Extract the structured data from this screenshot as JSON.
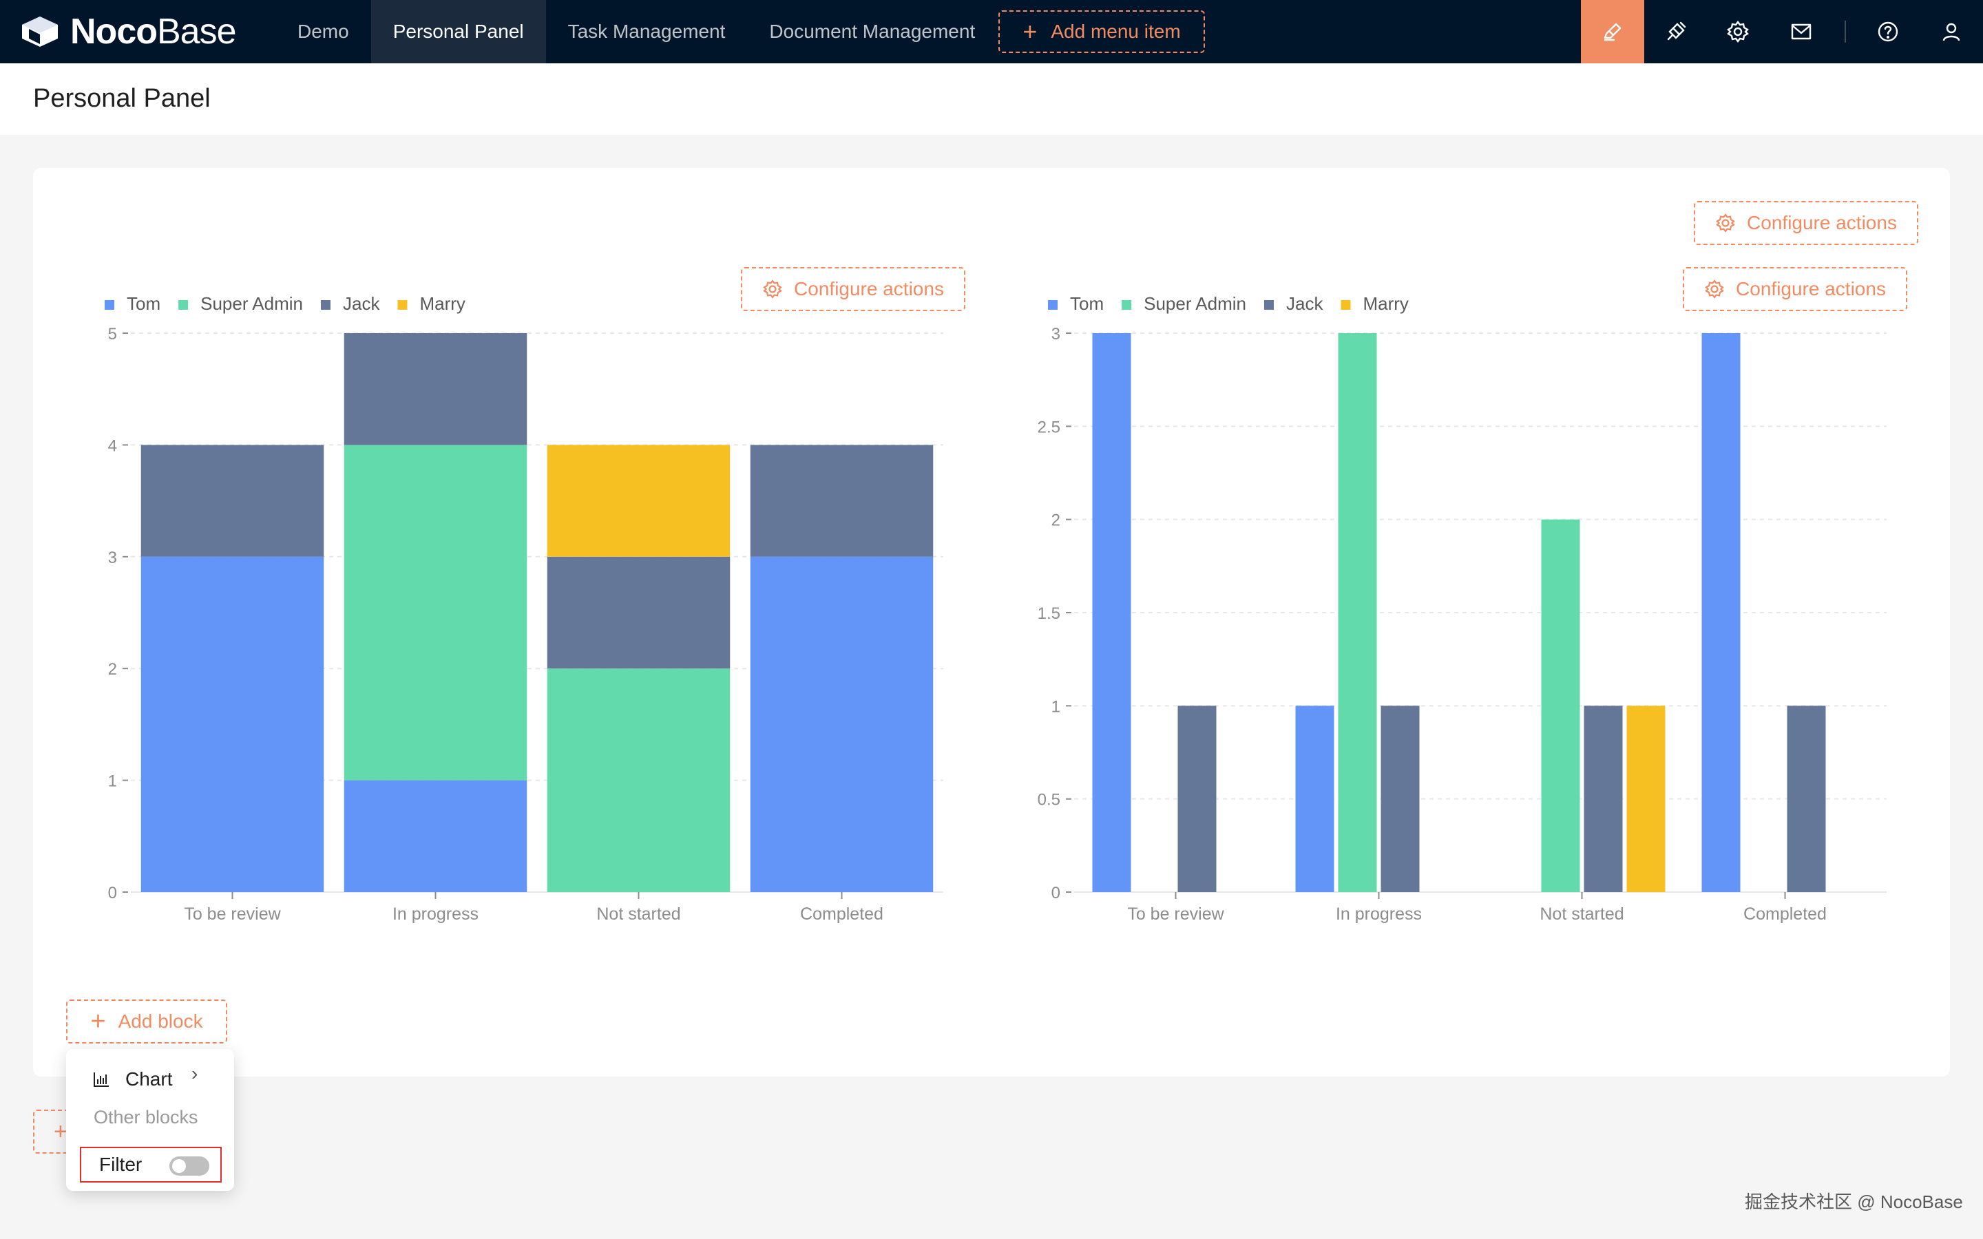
{
  "topbar": {
    "logo_bold": "Noco",
    "logo_light": "Base",
    "nav": [
      {
        "label": "Demo"
      },
      {
        "label": "Personal Panel"
      },
      {
        "label": "Task Management"
      },
      {
        "label": "Document Management"
      }
    ],
    "active_nav": "Personal Panel",
    "add_menu_label": "Add menu item",
    "tools": [
      "ui-editor-icon",
      "plugin-icon",
      "settings-icon",
      "mail-icon",
      "help-icon",
      "user-icon"
    ]
  },
  "page": {
    "title": "Personal Panel"
  },
  "actions": {
    "configure_label": "Configure actions",
    "add_block_label": "Add block"
  },
  "dropdown": {
    "chart_label": "Chart",
    "group_label": "Other blocks",
    "filter_label": "Filter",
    "filter_enabled": false
  },
  "colors": {
    "accent": "#f18b62",
    "nav_bg": "#001529",
    "Tom": "#6395f9",
    "Super Admin": "#62daab",
    "Jack": "#657798",
    "Marry": "#f6c022"
  },
  "chart_data": [
    {
      "type": "bar",
      "stacked": true,
      "title": "",
      "categories": [
        "To be review",
        "In progress",
        "Not started",
        "Completed"
      ],
      "series": [
        {
          "name": "Tom",
          "values": [
            3,
            1,
            0,
            3
          ]
        },
        {
          "name": "Super Admin",
          "values": [
            0,
            3,
            2,
            0
          ]
        },
        {
          "name": "Jack",
          "values": [
            1,
            1,
            1,
            1
          ]
        },
        {
          "name": "Marry",
          "values": [
            0,
            0,
            1,
            0
          ]
        }
      ],
      "yticks": [
        "0",
        "1",
        "2",
        "3",
        "4",
        "5"
      ],
      "ylim": [
        0,
        5
      ],
      "legend": "top-left",
      "grid": true
    },
    {
      "type": "bar",
      "stacked": false,
      "title": "",
      "categories": [
        "To be review",
        "In progress",
        "Not started",
        "Completed"
      ],
      "series": [
        {
          "name": "Tom",
          "values": [
            3,
            1,
            0,
            3
          ]
        },
        {
          "name": "Super Admin",
          "values": [
            0,
            3,
            2,
            0
          ]
        },
        {
          "name": "Jack",
          "values": [
            1,
            1,
            1,
            1
          ]
        },
        {
          "name": "Marry",
          "values": [
            0,
            0,
            1,
            0
          ]
        }
      ],
      "yticks": [
        "0",
        "0.5",
        "1",
        "1.5",
        "2",
        "2.5",
        "3"
      ],
      "ylim": [
        0,
        3
      ],
      "legend": "top-left",
      "grid": true
    }
  ],
  "watermark": "掘金技术社区 @ NocoBase"
}
